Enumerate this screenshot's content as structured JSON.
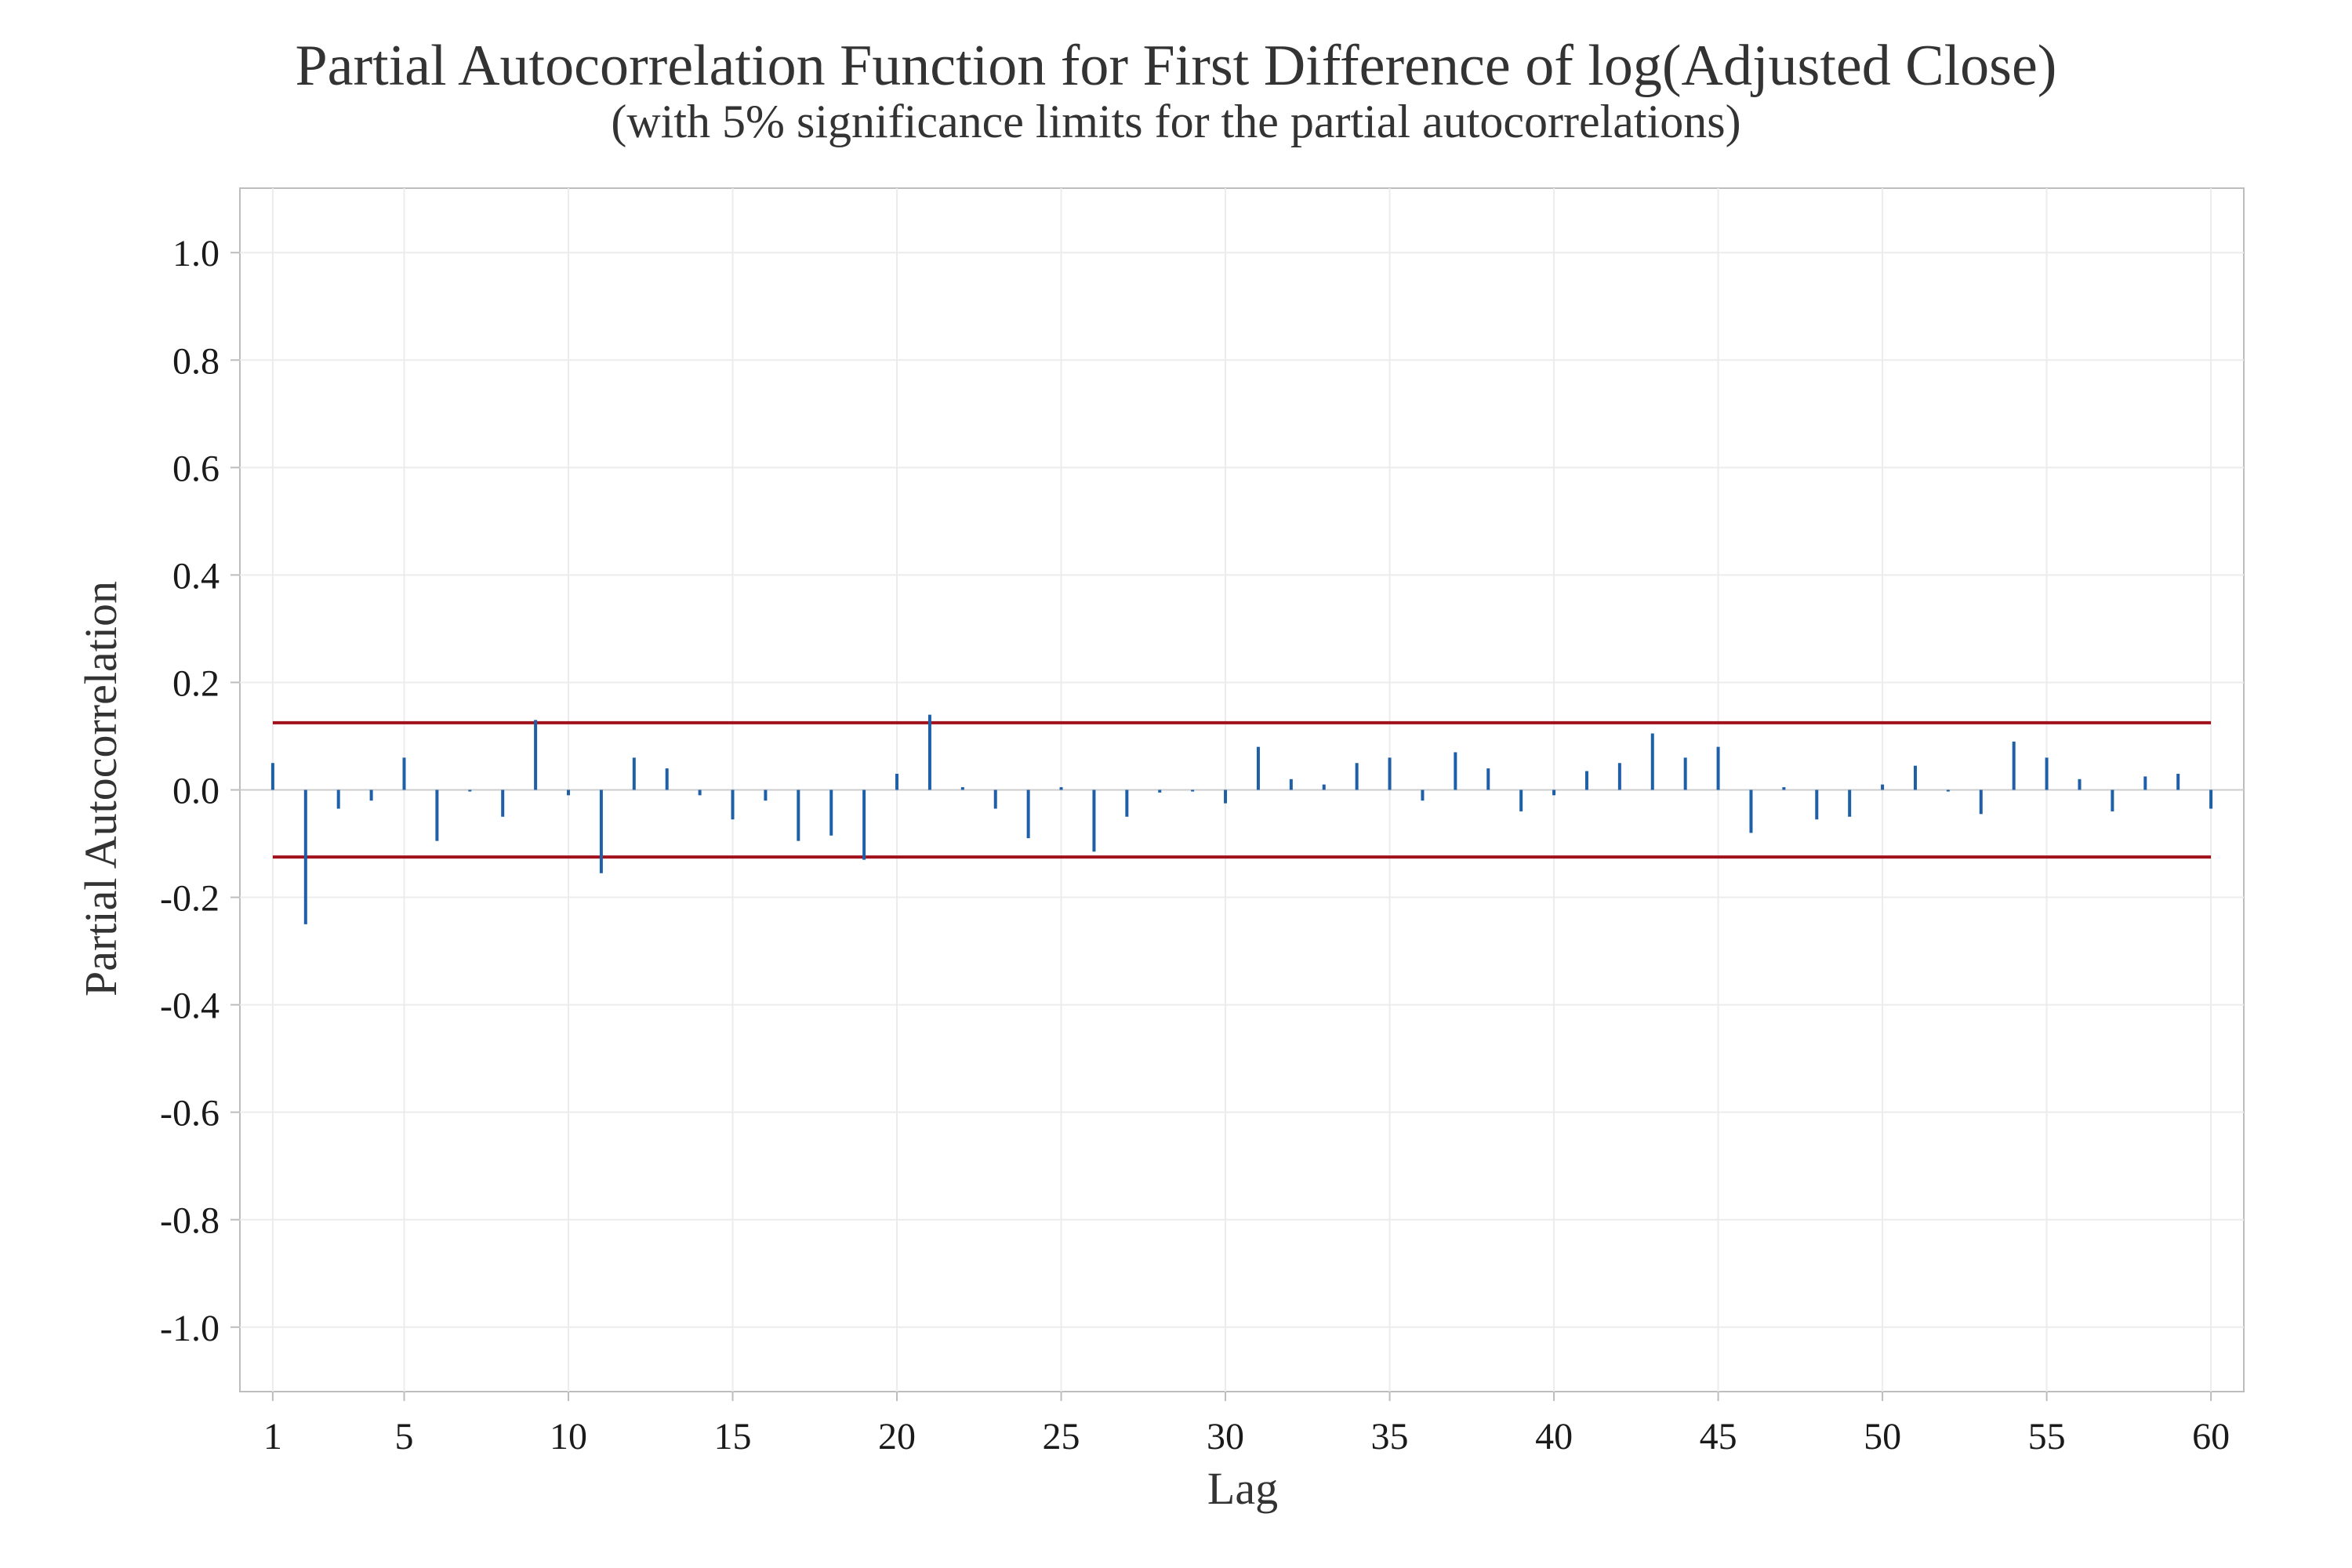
{
  "chart_data": {
    "type": "bar",
    "title": "Partial Autocorrelation Function for First Difference of log(Adjusted Close)",
    "subtitle": "(with 5% significance limits for the partial autocorrelations)",
    "xlabel": "Lag",
    "ylabel": "Partial Autocorrelation",
    "xlim": [
      0,
      61
    ],
    "ylim": [
      -1.12,
      1.12
    ],
    "x_ticks": [
      1,
      5,
      10,
      15,
      20,
      25,
      30,
      35,
      40,
      45,
      50,
      55,
      60
    ],
    "x_tick_labels": [
      "1",
      "5",
      "10",
      "15",
      "20",
      "25",
      "30",
      "35",
      "40",
      "45",
      "50",
      "55",
      "60"
    ],
    "y_ticks": [
      1.0,
      0.8,
      0.6,
      0.4,
      0.2,
      0.0,
      -0.2,
      -0.4,
      -0.6,
      -0.8,
      -1.0
    ],
    "y_tick_labels": [
      "1.0",
      "0.8",
      "0.6",
      "0.4",
      "0.2",
      "0.0",
      "-0.2",
      "-0.4",
      "-0.6",
      "-0.8",
      "-1.0"
    ],
    "grid": true,
    "lags": [
      1,
      2,
      3,
      4,
      5,
      6,
      7,
      8,
      9,
      10,
      11,
      12,
      13,
      14,
      15,
      16,
      17,
      18,
      19,
      20,
      21,
      22,
      23,
      24,
      25,
      26,
      27,
      28,
      29,
      30,
      31,
      32,
      33,
      34,
      35,
      36,
      37,
      38,
      39,
      40,
      41,
      42,
      43,
      44,
      45,
      46,
      47,
      48,
      49,
      50,
      51,
      52,
      53,
      54,
      55,
      56,
      57,
      58,
      59,
      60
    ],
    "values": [
      0.05,
      -0.25,
      -0.035,
      -0.02,
      0.06,
      -0.095,
      -0.003,
      -0.05,
      0.13,
      -0.01,
      -0.155,
      0.06,
      0.04,
      -0.01,
      -0.055,
      -0.02,
      -0.095,
      -0.085,
      -0.13,
      0.03,
      0.14,
      0.005,
      -0.035,
      -0.09,
      0.005,
      -0.115,
      -0.05,
      -0.005,
      -0.003,
      -0.025,
      0.08,
      0.02,
      0.01,
      0.05,
      0.06,
      -0.02,
      0.07,
      0.04,
      -0.04,
      -0.01,
      0.035,
      0.05,
      0.105,
      0.06,
      0.08,
      -0.08,
      0.005,
      -0.055,
      -0.05,
      0.01,
      0.045,
      -0.003,
      -0.045,
      0.09,
      0.06,
      0.02,
      -0.04,
      0.025,
      0.03,
      -0.035
    ],
    "significance_limit": 0.125,
    "colors": {
      "bars": "#1f5fa8",
      "limits": "#a0111b",
      "zero_line": "#cccccc",
      "grid": "#ececec",
      "frame": "#bdbdbd"
    }
  }
}
